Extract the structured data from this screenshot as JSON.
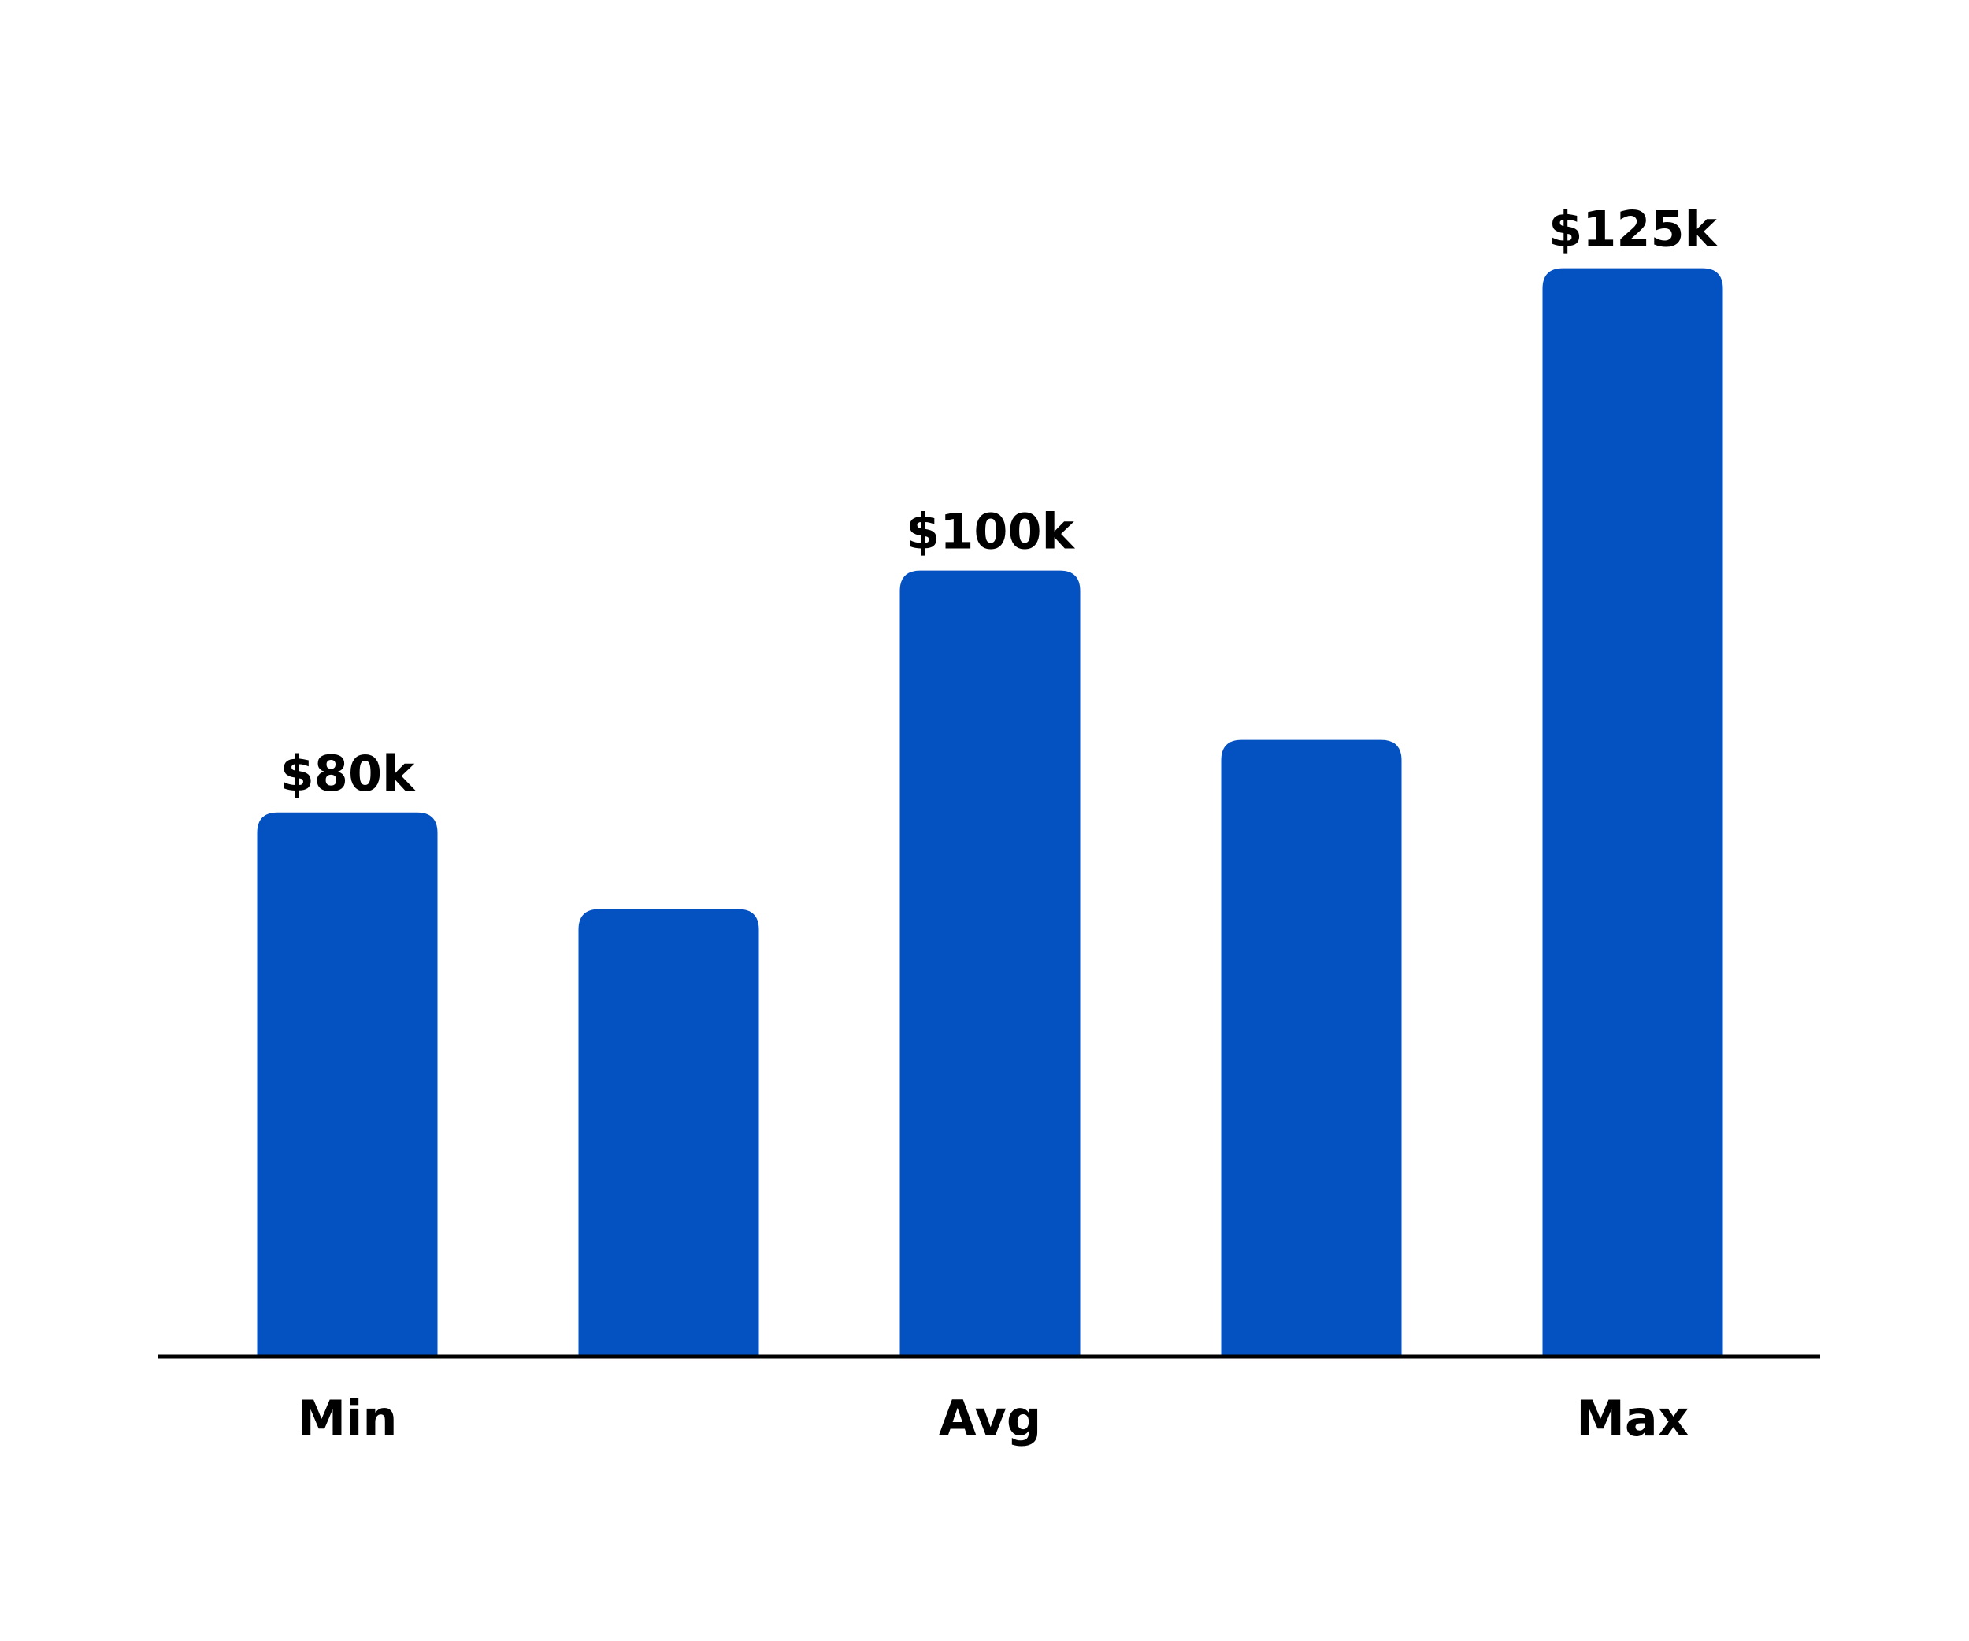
{
  "chart_data": {
    "type": "bar",
    "categories": [
      "Min",
      null,
      "Avg",
      null,
      "Max"
    ],
    "values": [
      80,
      72,
      100,
      86,
      125
    ],
    "value_labels": [
      "$80k",
      null,
      "$100k",
      null,
      "$125k"
    ],
    "color": "#0451c1",
    "ylim": [
      35,
      135
    ]
  }
}
